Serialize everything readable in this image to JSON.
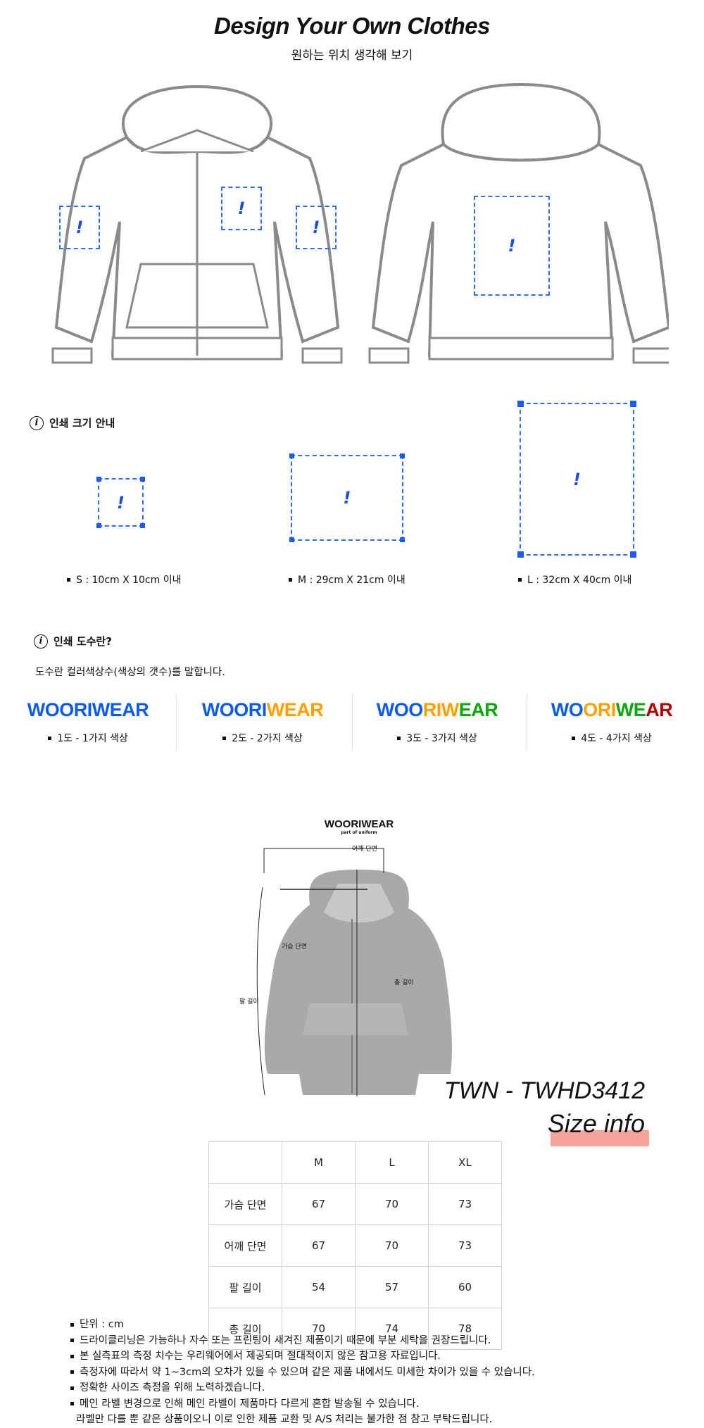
{
  "header": {
    "title": "Design Your Own Clothes",
    "subtitle": "원하는 위치 생각해 보기"
  },
  "print_size": {
    "heading": "인쇄 크기 안내",
    "mark": "!",
    "sizes": [
      {
        "label": "S : 10cm X 10cm 이내"
      },
      {
        "label": "M : 29cm X 21cm 이내"
      },
      {
        "label": "L : 32cm X 40cm 이내"
      }
    ]
  },
  "colors_section": {
    "heading": "인쇄 도수란?",
    "description": "도수란 컬러색상수(색상의 갯수)를 말합니다.",
    "items": [
      {
        "label": "1도 - 1가지 색상",
        "logo": [
          {
            "t": "WOORIWEAR",
            "c": "#0a5cf0"
          }
        ]
      },
      {
        "label": "2도 - 2가지 색상",
        "logo": [
          {
            "t": "WOORI",
            "c": "#0a5cf0"
          },
          {
            "t": "WEAR",
            "c": "#ffa000"
          }
        ]
      },
      {
        "label": "3도 - 3가지 색상",
        "logo": [
          {
            "t": "WOO",
            "c": "#0a5cf0"
          },
          {
            "t": "RIW",
            "c": "#ffa000"
          },
          {
            "t": "EAR",
            "c": "#0aa70a"
          }
        ]
      },
      {
        "label": "4도 - 4가지 색상",
        "logo": [
          {
            "t": "WO",
            "c": "#0a5cf0"
          },
          {
            "t": "ORI",
            "c": "#ffa000"
          },
          {
            "t": "WE",
            "c": "#0aa70a"
          },
          {
            "t": "AR",
            "c": "#b00000"
          }
        ]
      }
    ]
  },
  "product": {
    "brand": "WOORIWEAR",
    "brand_sub": "part of uniform",
    "shoulder": "어깨 단면",
    "chest": "가슴 단면",
    "total": "총 길이",
    "sleeve": "팔 길이",
    "code": "TWN - TWHD3412",
    "size_info": "Size info"
  },
  "size_table": {
    "headers": [
      "",
      "M",
      "L",
      "XL"
    ],
    "rows": [
      [
        "가슴 단면",
        "67",
        "70",
        "73"
      ],
      [
        "어깨 단면",
        "67",
        "70",
        "73"
      ],
      [
        "팔 길이",
        "54",
        "57",
        "60"
      ],
      [
        "총 길이",
        "70",
        "74",
        "78"
      ]
    ]
  },
  "notes": [
    "단위 : cm",
    "드라이클리닝은 가능하나 자수 또는 프린팅이 새겨진 제품이기 때문에 부분 세탁을 권장드립니다.",
    "본 실측표의 측정 치수는 우리웨어에서 제공되며 절대적이지 않은 참고용 자료입니다.",
    "측정자에 따라서 약 1~3cm의 오차가 있을 수 있으며 같은 제품 내에서도 미세한 차이가 있을 수 있습니다.",
    "정확한 사이즈 측정을 위해 노력하겠습니다.",
    "메인 라벨 변경으로 인해 메인 라벨이 제품마다 다르게 혼합 발송될 수 있습니다."
  ],
  "notes_continued": "라벨만 다를 뿐 같은 상품이오니 이로 인한 제품 교환 및 A/S 처리는 불가한 점 참고 부탁드립니다."
}
